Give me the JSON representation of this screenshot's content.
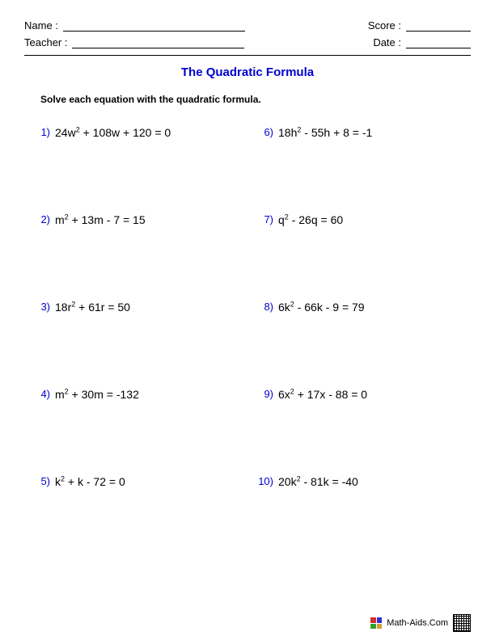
{
  "header": {
    "name_label": "Name :",
    "teacher_label": "Teacher :",
    "score_label": "Score :",
    "date_label": "Date :"
  },
  "title": "The Quadratic Formula",
  "instructions": "Solve each equation with the quadratic formula.",
  "left": [
    {
      "num": "1)",
      "html": "24w<sup>2</sup> + 108w + 120 = 0"
    },
    {
      "num": "2)",
      "html": "m<sup>2</sup> + 13m - 7 = 15"
    },
    {
      "num": "3)",
      "html": "18r<sup>2</sup> + 61r = 50"
    },
    {
      "num": "4)",
      "html": "m<sup>2</sup> + 30m = -132"
    },
    {
      "num": "5)",
      "html": "k<sup>2</sup> + k - 72 = 0"
    }
  ],
  "right": [
    {
      "num": "6)",
      "html": "18h<sup>2</sup> - 55h + 8 = -1"
    },
    {
      "num": "7)",
      "html": "q<sup>2</sup> - 26q = 60"
    },
    {
      "num": "8)",
      "html": "6k<sup>2</sup> - 66k - 9 = 79"
    },
    {
      "num": "9)",
      "html": "6x<sup>2</sup> + 17x - 88 = 0"
    },
    {
      "num": "10)",
      "html": "20k<sup>2</sup> - 81k = -40"
    }
  ],
  "footer": {
    "site": "Math-Aids.Com"
  },
  "colors": {
    "accent": "#0000d0",
    "logo": [
      "#d03030",
      "#3030d0",
      "#30a030",
      "#d0a030"
    ]
  },
  "lines": {
    "long": 225,
    "short": 80
  }
}
